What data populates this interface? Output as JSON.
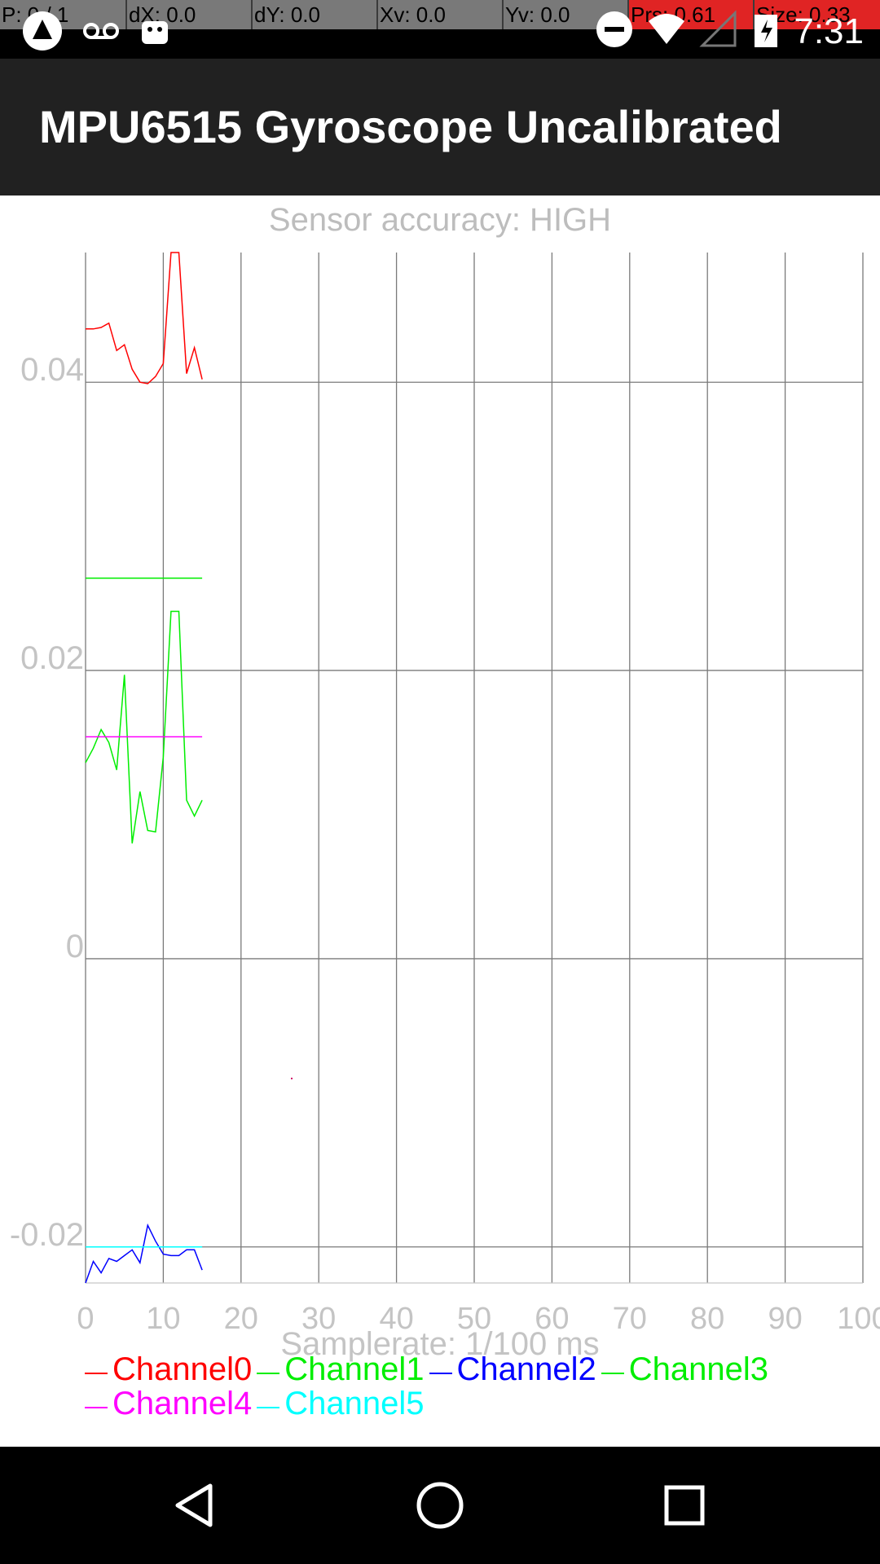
{
  "status_bar": {
    "debug": [
      "P: 0 / 1",
      "dX: 0.0",
      "dY: 0.0",
      "Xv: 0.0",
      "Yv: 0.0",
      "Prs: 0.61",
      "Size: 0.33"
    ],
    "time": "7:31"
  },
  "app_bar": {
    "title": "MPU6515 Gyroscope Uncalibrated"
  },
  "chart": {
    "accuracy": "Sensor accuracy: HIGH"
  },
  "chart_data": {
    "type": "line",
    "xlabel": "Samplerate: 1/100 ms",
    "ylabel": "",
    "xlim": [
      0,
      100
    ],
    "ylim": [
      -0.0225,
      0.049
    ],
    "xticks": [
      "0",
      "10",
      "20",
      "30",
      "40",
      "50",
      "60",
      "70",
      "80",
      "90",
      "100"
    ],
    "yticks": [
      {
        "value": 0.04,
        "label": "0.04"
      },
      {
        "value": 0.02,
        "label": "0.02"
      },
      {
        "value": 0,
        "label": "0"
      },
      {
        "value": -0.02,
        "label": "-0.02"
      }
    ],
    "grid": true,
    "legend_position": "bottom",
    "series": [
      {
        "name": "Channel0",
        "color": "#ff0000",
        "x": [
          0,
          1,
          2,
          3,
          4,
          5,
          6,
          7,
          8,
          9,
          10,
          11,
          12,
          13,
          14,
          15
        ],
        "y": [
          0.0437,
          0.0437,
          0.0438,
          0.0441,
          0.0422,
          0.0426,
          0.0409,
          0.04,
          0.0399,
          0.0404,
          0.0413,
          0.049,
          0.049,
          0.0406,
          0.0424,
          0.0402
        ]
      },
      {
        "name": "Channel1",
        "color": "#00ee00",
        "x": [
          0,
          1,
          2,
          3,
          4,
          5,
          6,
          7,
          8,
          9,
          10,
          11,
          12,
          13,
          14,
          15
        ],
        "y": [
          0.0136,
          0.0146,
          0.0159,
          0.015,
          0.0131,
          0.0197,
          0.008,
          0.0116,
          0.0089,
          0.0088,
          0.014,
          0.0241,
          0.0241,
          0.011,
          0.0099,
          0.011
        ]
      },
      {
        "name": "Channel2",
        "color": "#0000ff",
        "x": [
          0,
          1,
          2,
          3,
          4,
          5,
          6,
          7,
          8,
          9,
          10,
          11,
          12,
          13,
          14,
          15
        ],
        "y": [
          -0.0225,
          -0.021,
          -0.0218,
          -0.0208,
          -0.021,
          -0.0206,
          -0.0202,
          -0.0211,
          -0.0185,
          -0.0196,
          -0.0205,
          -0.0206,
          -0.0206,
          -0.0202,
          -0.0202,
          -0.0216
        ]
      },
      {
        "name": "Channel3",
        "color": "#00ee00",
        "x": [
          0,
          15
        ],
        "y": [
          0.0264,
          0.0264
        ]
      },
      {
        "name": "Channel4",
        "color": "#ff00ff",
        "x": [
          0,
          15
        ],
        "y": [
          0.0154,
          0.0154
        ]
      },
      {
        "name": "Channel5",
        "color": "#00ffff",
        "x": [
          0,
          15
        ],
        "y": [
          -0.02,
          -0.02
        ]
      }
    ]
  },
  "nav_bar": {}
}
